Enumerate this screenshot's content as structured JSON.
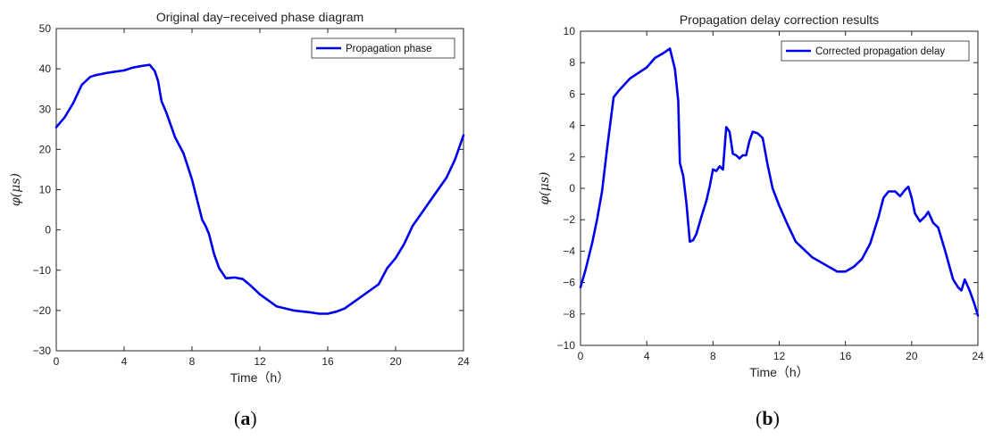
{
  "chart_data": [
    {
      "type": "line",
      "title": "Original day−received phase diagram",
      "xlabel": "Time（h）",
      "ylabel": "φ(μs)",
      "xlim": [
        0,
        24
      ],
      "ylim": [
        -30,
        50
      ],
      "xticks": [
        0,
        4,
        8,
        12,
        16,
        20,
        24
      ],
      "yticks": [
        -30,
        -20,
        -10,
        0,
        10,
        20,
        30,
        40,
        50
      ],
      "grid": false,
      "legend_position": "top-right",
      "series": [
        {
          "name": "Propagation phase",
          "color": "#0000ee",
          "x": [
            0,
            0.5,
            1,
            1.5,
            2,
            2.3,
            3,
            4,
            4.5,
            5,
            5.5,
            5.8,
            6,
            6.2,
            6.5,
            7,
            7.5,
            8,
            8.3,
            8.6,
            8.8,
            9,
            9.3,
            9.6,
            10,
            10.5,
            11,
            11.5,
            12,
            13,
            14,
            15,
            15.5,
            16,
            16.5,
            17,
            18,
            19,
            19.5,
            20,
            20.5,
            21,
            21.5,
            22,
            22.5,
            23,
            23.5,
            24
          ],
          "y": [
            25.5,
            28,
            31.5,
            36,
            38,
            38.4,
            39,
            39.6,
            40.3,
            40.7,
            41,
            39.5,
            37,
            32,
            29,
            23,
            19,
            12.5,
            7.5,
            2.5,
            1,
            -1,
            -6,
            -9.5,
            -12,
            -11.8,
            -12.2,
            -14,
            -16,
            -19,
            -20,
            -20.5,
            -20.8,
            -20.8,
            -20.3,
            -19.5,
            -16.5,
            -13.5,
            -9.5,
            -7,
            -3.5,
            1,
            4,
            7,
            10,
            13,
            17.5,
            23.5
          ]
        }
      ]
    },
    {
      "type": "line",
      "title": "Propagation delay correction results",
      "xlabel": "Time（h）",
      "ylabel": "φ(μs)",
      "xlim": [
        0,
        24
      ],
      "ylim": [
        -10,
        10
      ],
      "xticks": [
        0,
        4,
        8,
        12,
        16,
        20,
        24
      ],
      "yticks": [
        -10,
        -8,
        -6,
        -4,
        -2,
        0,
        2,
        4,
        6,
        8,
        10
      ],
      "grid": false,
      "legend_position": "top-right",
      "series": [
        {
          "name": "Corrected propagation delay",
          "color": "#0000ee",
          "x": [
            0,
            0.3,
            0.7,
            1,
            1.3,
            1.6,
            2,
            2.3,
            3,
            4,
            4.5,
            5,
            5.4,
            5.7,
            5.9,
            6,
            6.2,
            6.4,
            6.6,
            6.8,
            7,
            7.3,
            7.6,
            7.8,
            8,
            8.2,
            8.4,
            8.6,
            8.8,
            9,
            9.2,
            9.4,
            9.6,
            9.8,
            10,
            10.2,
            10.4,
            10.7,
            11,
            11.3,
            11.6,
            12,
            12.5,
            13,
            14,
            15,
            15.5,
            16,
            16.5,
            17,
            17.5,
            18,
            18.3,
            18.6,
            19,
            19.3,
            19.6,
            19.8,
            20,
            20.2,
            20.5,
            20.8,
            21,
            21.3,
            21.6,
            22,
            22.5,
            22.8,
            23,
            23.2,
            23.5,
            23.8,
            24
          ],
          "y": [
            -6.3,
            -5.2,
            -3.5,
            -2,
            -0.2,
            2.5,
            5.8,
            6.2,
            7,
            7.7,
            8.3,
            8.6,
            8.9,
            7.6,
            5.6,
            1.6,
            0.8,
            -1,
            -3.4,
            -3.3,
            -2.9,
            -1.8,
            -0.8,
            0.1,
            1.2,
            1.1,
            1.4,
            1.2,
            3.9,
            3.6,
            2.2,
            2.1,
            1.9,
            2.1,
            2.1,
            3,
            3.6,
            3.5,
            3.2,
            1.5,
            0,
            -1.1,
            -2.3,
            -3.4,
            -4.4,
            -5,
            -5.3,
            -5.3,
            -5,
            -4.5,
            -3.5,
            -1.8,
            -0.6,
            -0.2,
            -0.2,
            -0.5,
            -0.1,
            0.1,
            -0.6,
            -1.6,
            -2.1,
            -1.8,
            -1.5,
            -2.2,
            -2.5,
            -3.9,
            -5.8,
            -6.3,
            -6.5,
            -5.8,
            -6.5,
            -7.4,
            -8.1
          ]
        }
      ]
    }
  ],
  "panels": [
    {
      "label": "a",
      "open": "(",
      "close": ")"
    },
    {
      "label": "b",
      "open": "(",
      "close": ")"
    }
  ]
}
